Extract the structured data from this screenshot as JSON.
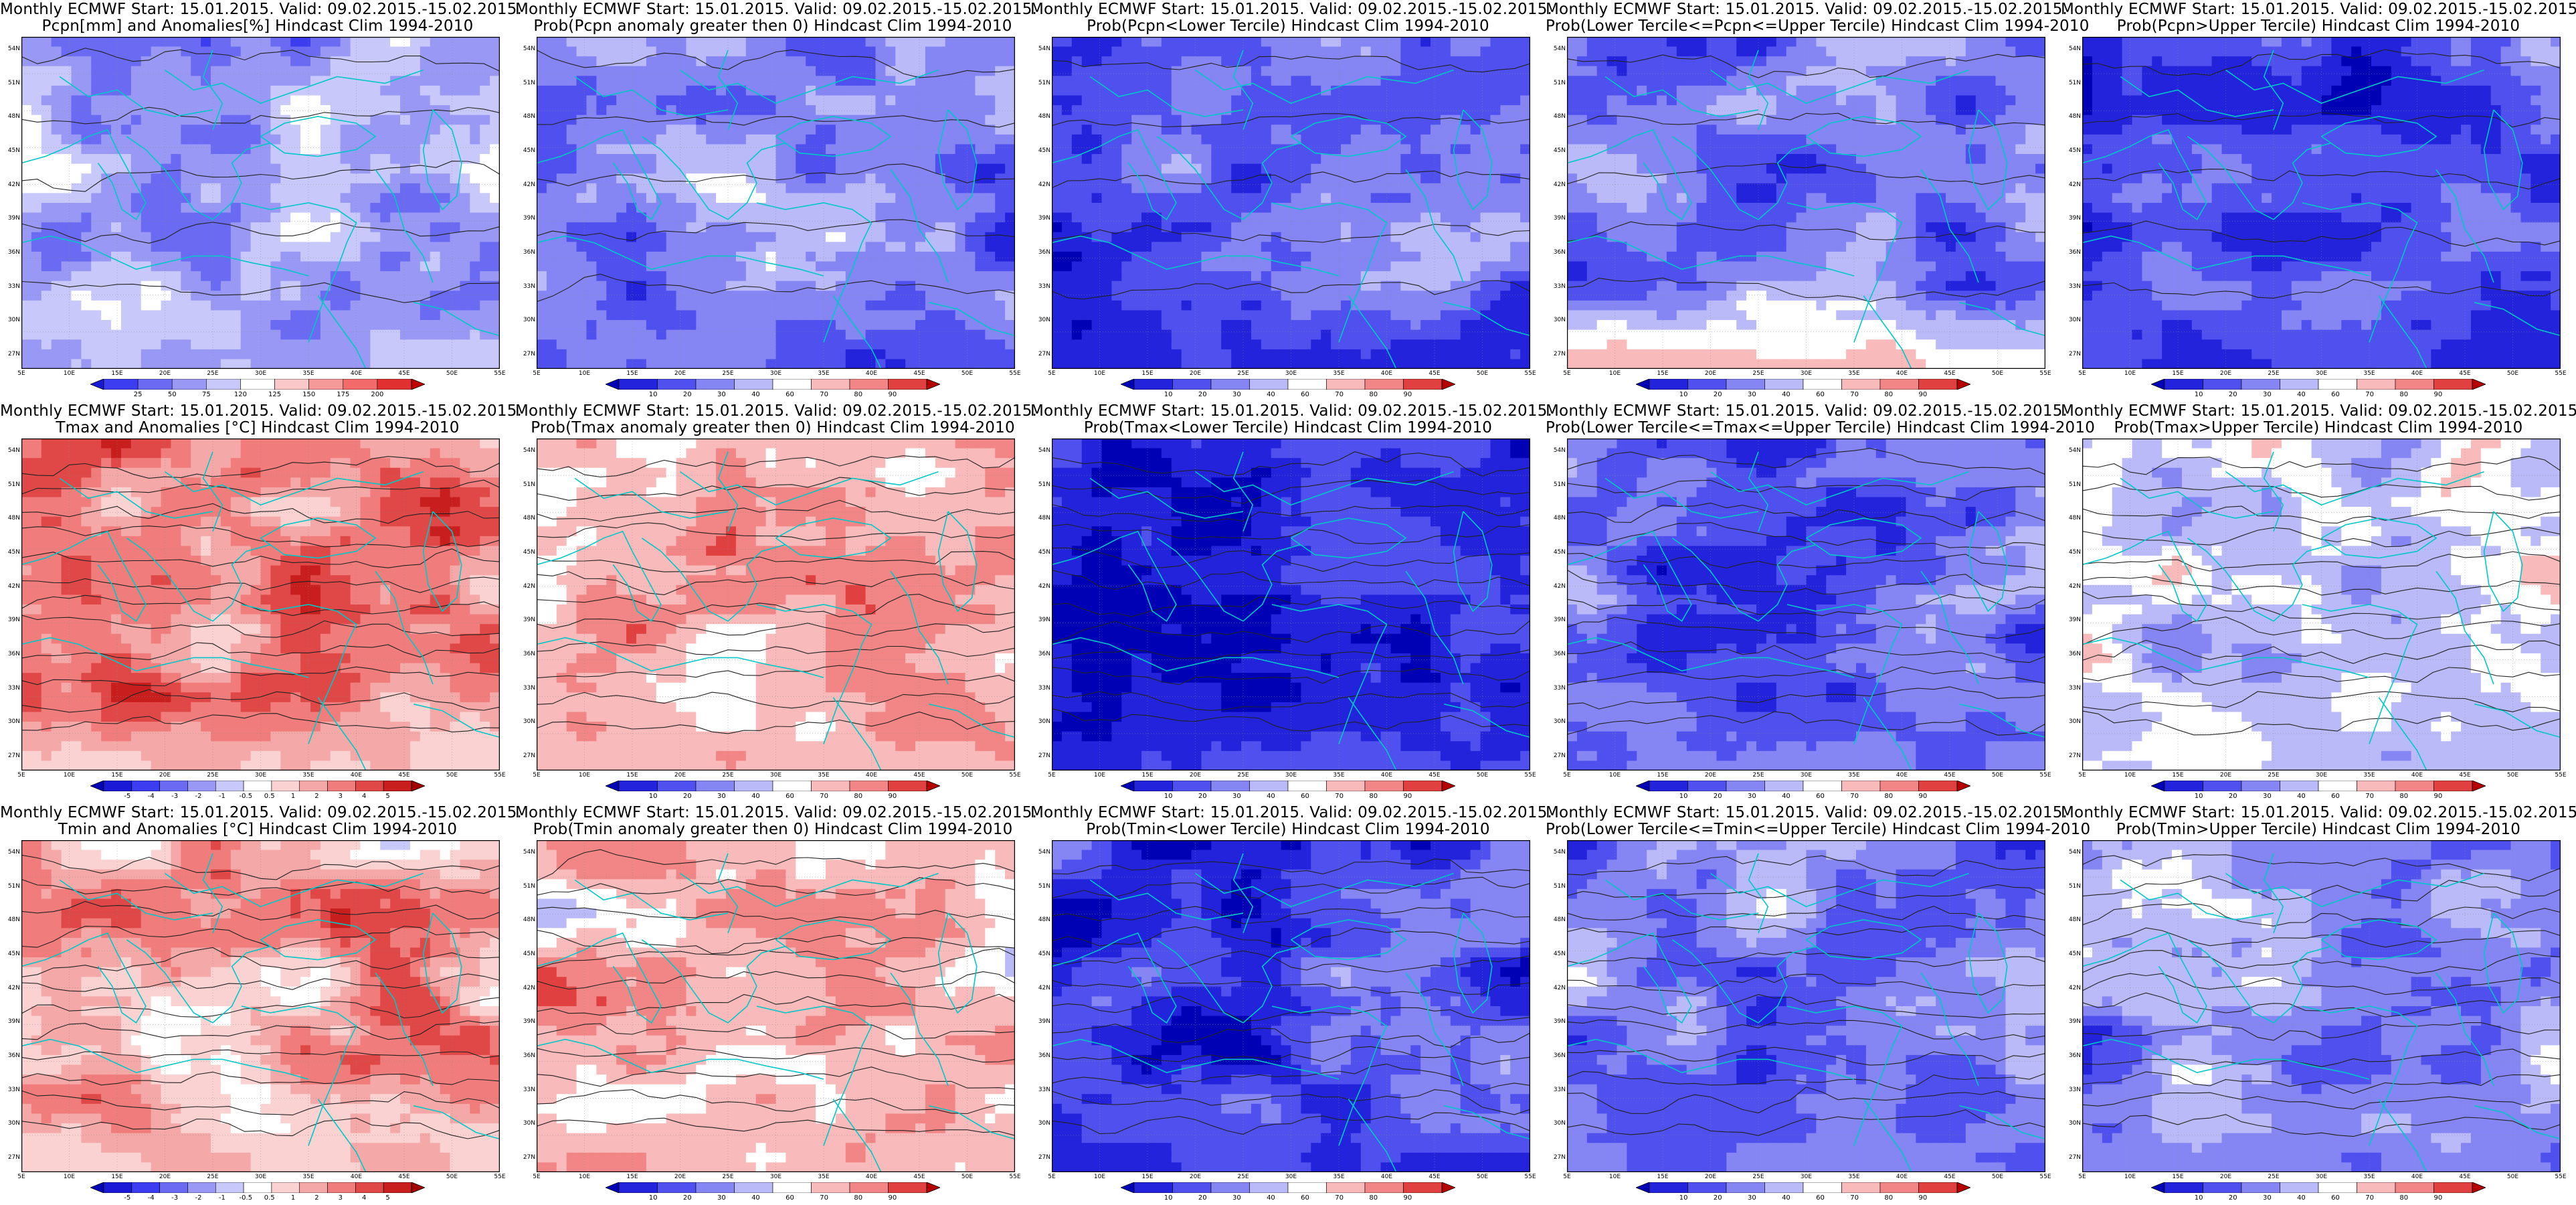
{
  "figure": {
    "lat_labels": [
      "54N",
      "51N",
      "48N",
      "45N",
      "42N",
      "39N",
      "36N",
      "33N",
      "30N",
      "27N"
    ],
    "lon_labels": [
      "5E",
      "10E",
      "15E",
      "20E",
      "25E",
      "30E",
      "35E",
      "40E",
      "45E",
      "50E",
      "55E"
    ],
    "colorbars": {
      "anomaly_pcpn": {
        "labels": [
          "25",
          "50",
          "75",
          "120",
          "125",
          "150",
          "175",
          "200"
        ],
        "colors": [
          "#1a1ad6",
          "#3c3cf0",
          "#6a6af2",
          "#9999f5",
          "#c8c8fa",
          "#ffffff",
          "#fac8c8",
          "#f59999",
          "#f26a6a",
          "#e03030",
          "#c00000"
        ]
      },
      "anomaly_temp": {
        "labels": [
          "-5",
          "-4",
          "-3",
          "-2",
          "-1",
          "-0.5",
          "0.5",
          "1",
          "2",
          "3",
          "4",
          "5"
        ],
        "colors": [
          "#0000b4",
          "#1a1ad6",
          "#3c3cf0",
          "#6a6af2",
          "#9999f5",
          "#c8c8fa",
          "#ffffff",
          "#fad2d2",
          "#f5a8a8",
          "#f07c7c",
          "#e04848",
          "#c81e1e",
          "#a00000"
        ]
      },
      "probability": {
        "labels": [
          "10",
          "20",
          "30",
          "40",
          "60",
          "70",
          "80",
          "90"
        ],
        "colors": [
          "#0000b4",
          "#2323dc",
          "#5050ee",
          "#8585f3",
          "#babaf8",
          "#ffffff",
          "#f8baba",
          "#f28585",
          "#e04040",
          "#b40000"
        ]
      }
    },
    "panels": [
      {
        "row": 0,
        "col": 0,
        "title1": "Monthly ECMWF Start: 15.01.2015. Valid: 09.02.2015.-15.02.2015.",
        "title2": "Pcpn[mm] and Anomalies[%] Hindcast Clim 1994-2010",
        "kind": "anom",
        "cbar": "anomaly_pcpn",
        "base": 0.38,
        "band": 0.36,
        "contours": "sparse"
      },
      {
        "row": 0,
        "col": 1,
        "title1": "Monthly ECMWF Start: 15.01.2015. Valid: 09.02.2015.-15.02.2015.",
        "title2": "Prob(Pcpn anomaly greater then 0) Hindcast Clim 1994-2010",
        "kind": "prob",
        "cbar": "probability",
        "base": 0.36,
        "band": 0.15,
        "contours": "sparse"
      },
      {
        "row": 0,
        "col": 2,
        "title1": "Monthly ECMWF Start: 15.01.2015. Valid: 09.02.2015.-15.02.2015.",
        "title2": "Prob(Pcpn<Lower Tercile) Hindcast Clim 1994-2010",
        "kind": "prob",
        "cbar": "probability",
        "base": 0.3,
        "band": 0.0,
        "contours": "sparse"
      },
      {
        "row": 0,
        "col": 3,
        "title1": "Monthly ECMWF Start: 15.01.2015. Valid: 09.02.2015.-15.02.2015.",
        "title2": "Prob(Lower Tercile<=Pcpn<=Upper Tercile) Hindcast Clim 1994-2010",
        "kind": "prob",
        "cbar": "probability",
        "base": 0.3,
        "band": 0.9,
        "contours": "sparse"
      },
      {
        "row": 0,
        "col": 4,
        "title1": "Monthly ECMWF Start: 15.01.2015. Valid: 09.02.2015.-15.02.2015.",
        "title2": "Prob(Pcpn>Upper Tercile) Hindcast Clim 1994-2010",
        "kind": "prob",
        "cbar": "probability",
        "base": 0.25,
        "band": 0.18,
        "contours": "sparse"
      },
      {
        "row": 1,
        "col": 0,
        "title1": "Monthly ECMWF Start: 15.01.2015. Valid: 09.02.2015.-15.02.2015.",
        "title2": "Tmax and Anomalies [°C] Hindcast Clim 1994-2010",
        "kind": "anom",
        "cbar": "anomaly_temp",
        "base": 0.7,
        "band": 0.55,
        "contours": "dense"
      },
      {
        "row": 1,
        "col": 1,
        "title1": "Monthly ECMWF Start: 15.01.2015. Valid: 09.02.2015.-15.02.2015.",
        "title2": "Prob(Tmax anomaly greater then 0) Hindcast Clim 1994-2010",
        "kind": "prob",
        "cbar": "probability",
        "base": 0.66,
        "band": 0.62,
        "contours": "dense"
      },
      {
        "row": 1,
        "col": 2,
        "title1": "Monthly ECMWF Start: 15.01.2015. Valid: 09.02.2015.-15.02.2015.",
        "title2": "Prob(Tmax<Lower Tercile) Hindcast Clim 1994-2010",
        "kind": "prob",
        "cbar": "probability",
        "base": 0.18,
        "band": 0.25,
        "contours": "dense"
      },
      {
        "row": 1,
        "col": 3,
        "title1": "Monthly ECMWF Start: 15.01.2015. Valid: 09.02.2015.-15.02.2015.",
        "title2": "Prob(Lower Tercile<=Tmax<=Upper Tercile) Hindcast Clim 1994-2010",
        "kind": "prob",
        "cbar": "probability",
        "base": 0.3,
        "band": 0.35,
        "contours": "dense"
      },
      {
        "row": 1,
        "col": 4,
        "title1": "Monthly ECMWF Start: 15.01.2015. Valid: 09.02.2015.-15.02.2015.",
        "title2": "Prob(Tmax>Upper Tercile) Hindcast Clim 1994-2010",
        "kind": "prob",
        "cbar": "probability",
        "base": 0.48,
        "band": 0.45,
        "contours": "dense"
      },
      {
        "row": 2,
        "col": 0,
        "title1": "Monthly ECMWF Start: 15.01.2015. Valid: 09.02.2015.-15.02.2015.",
        "title2": "Tmin and Anomalies [°C] Hindcast Clim 1994-2010",
        "kind": "anom",
        "cbar": "anomaly_temp",
        "base": 0.64,
        "band": 0.55,
        "contours": "dense"
      },
      {
        "row": 2,
        "col": 1,
        "title1": "Monthly ECMWF Start: 15.01.2015. Valid: 09.02.2015.-15.02.2015.",
        "title2": "Prob(Tmin anomaly greater then 0) Hindcast Clim 1994-2010",
        "kind": "prob",
        "cbar": "probability",
        "base": 0.66,
        "band": 0.62,
        "contours": "dense"
      },
      {
        "row": 2,
        "col": 2,
        "title1": "Monthly ECMWF Start: 15.01.2015. Valid: 09.02.2015.-15.02.2015.",
        "title2": "Prob(Tmin<Lower Tercile) Hindcast Clim 1994-2010",
        "kind": "prob",
        "cbar": "probability",
        "base": 0.22,
        "band": 0.2,
        "contours": "dense"
      },
      {
        "row": 2,
        "col": 3,
        "title1": "Monthly ECMWF Start: 15.01.2015. Valid: 09.02.2015.-15.02.2015.",
        "title2": "Prob(Lower Tercile<=Tmin<=Upper Tercile) Hindcast Clim 1994-2010",
        "kind": "prob",
        "cbar": "probability",
        "base": 0.33,
        "band": 0.35,
        "contours": "dense"
      },
      {
        "row": 2,
        "col": 4,
        "title1": "Monthly ECMWF Start: 15.01.2015. Valid: 09.02.2015.-15.02.2015.",
        "title2": "Prob(Tmin>Upper Tercile) Hindcast Clim 1994-2010",
        "kind": "prob",
        "cbar": "probability",
        "base": 0.4,
        "band": 0.3,
        "contours": "dense"
      }
    ]
  }
}
